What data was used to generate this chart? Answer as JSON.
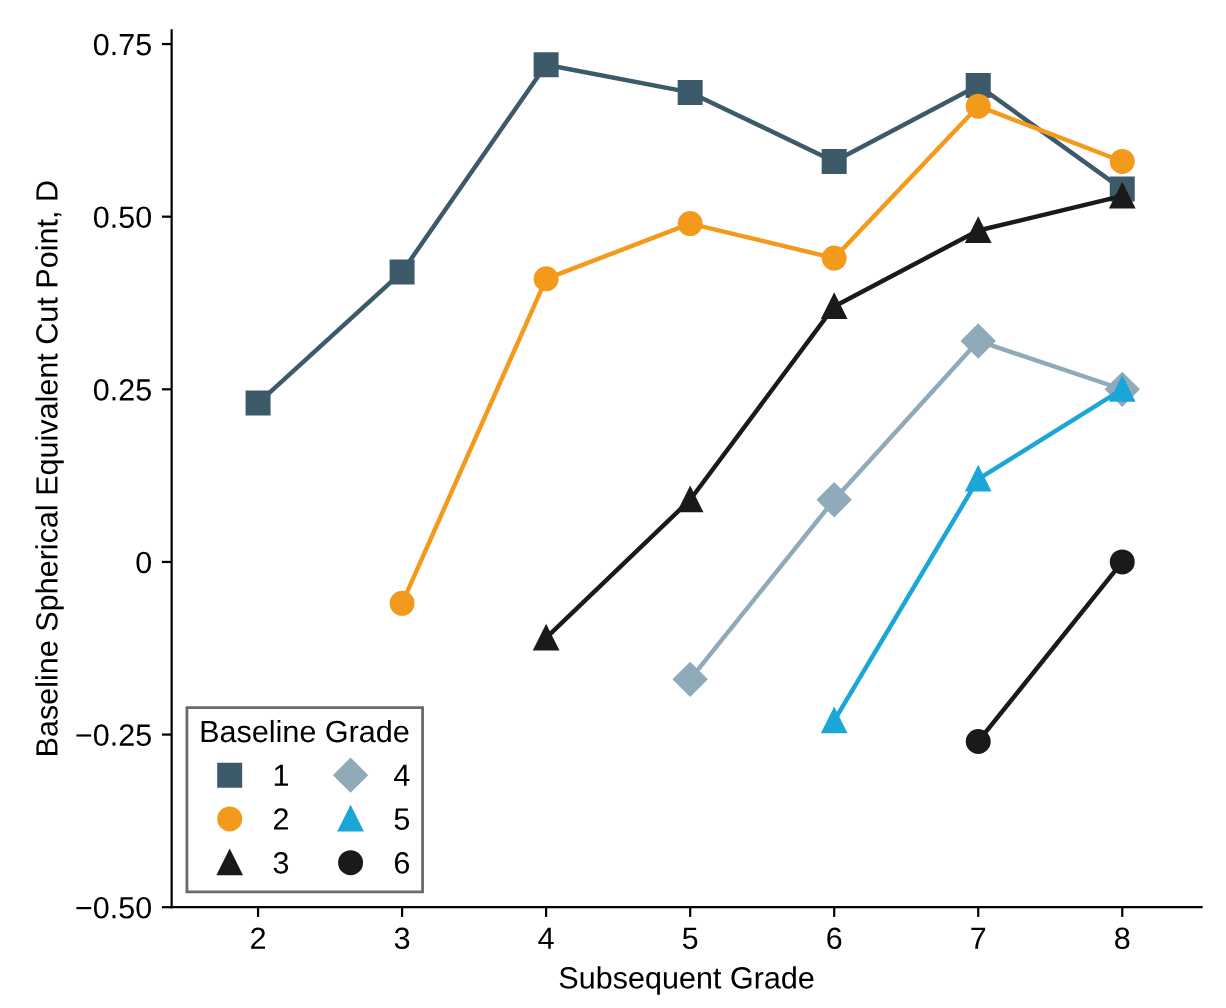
{
  "chart_data": {
    "type": "line",
    "xlabel": "Subsequent Grade",
    "ylabel": "Baseline Spherical Equivalent Cut Point, D",
    "legend_title": "Baseline Grade",
    "legend": "bottom left",
    "grid": false,
    "xlim": [
      1.4,
      8.55
    ],
    "xticks": [
      2,
      3,
      4,
      5,
      6,
      7,
      8
    ],
    "ylim": [
      -0.5,
      0.77
    ],
    "yticks": [
      {
        "value": 0.75,
        "label": "0.75"
      },
      {
        "value": 0.5,
        "label": "0.50"
      },
      {
        "value": 0.25,
        "label": "0.25"
      },
      {
        "value": 0,
        "label": "0"
      },
      {
        "value": -0.25,
        "label": "−0.25"
      },
      {
        "value": -0.5,
        "label": "−0.50"
      }
    ],
    "series": [
      {
        "name": "1",
        "color": "#3d5a6a",
        "marker": "square",
        "x": [
          2,
          3,
          4,
          5,
          6,
          7,
          8
        ],
        "values": [
          0.23,
          0.42,
          0.72,
          0.68,
          0.58,
          0.69,
          0.54
        ]
      },
      {
        "name": "2",
        "color": "#f39a1c",
        "marker": "circle",
        "x": [
          3,
          4,
          5,
          6,
          7,
          8
        ],
        "values": [
          -0.06,
          0.41,
          0.49,
          0.44,
          0.66,
          0.58
        ]
      },
      {
        "name": "3",
        "color": "#1a1a1a",
        "marker": "triangle",
        "x": [
          4,
          5,
          6,
          7,
          8
        ],
        "values": [
          -0.11,
          0.09,
          0.37,
          0.48,
          0.53
        ]
      },
      {
        "name": "4",
        "color": "#8faab8",
        "marker": "diamond",
        "x": [
          5,
          6,
          7,
          8
        ],
        "values": [
          -0.17,
          0.09,
          0.32,
          0.25
        ]
      },
      {
        "name": "5",
        "color": "#1ba6d8",
        "marker": "triangle",
        "x": [
          6,
          7,
          8
        ],
        "values": [
          -0.23,
          0.12,
          0.25
        ]
      },
      {
        "name": "6",
        "color": "#1a1a1a",
        "marker": "circle",
        "x": [
          7,
          8
        ],
        "values": [
          -0.26,
          0.0
        ]
      }
    ]
  }
}
